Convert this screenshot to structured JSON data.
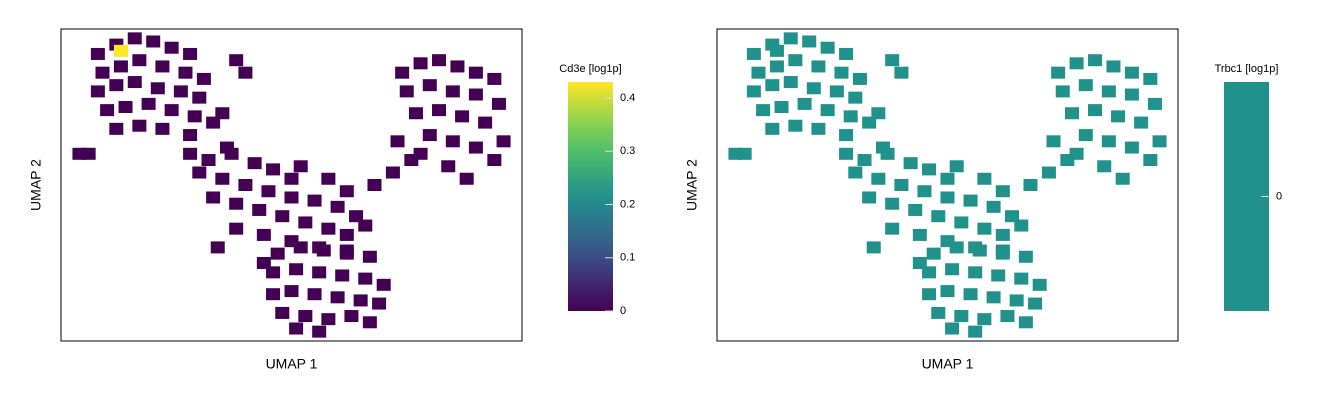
{
  "chart_data": [
    {
      "type": "scatter",
      "xlabel": "UMAP 1",
      "ylabel": "UMAP 2",
      "colorbar_label": "Cd3e [log1p]",
      "colormap": "viridis",
      "xlim": [
        0,
        100
      ],
      "ylim": [
        0,
        100
      ],
      "clim": [
        0,
        0.43
      ],
      "cticks": [
        0.0,
        0.1,
        0.2,
        0.3,
        0.4
      ],
      "x": [
        8,
        12,
        16,
        20,
        24,
        28,
        9,
        13,
        17,
        22,
        27,
        31,
        8,
        12,
        16,
        21,
        26,
        30,
        10,
        14,
        19,
        24,
        29,
        33,
        12,
        17,
        22,
        28,
        35,
        38,
        40,
        36,
        28,
        32,
        37,
        42,
        46,
        50,
        30,
        35,
        40,
        45,
        50,
        55,
        60,
        64,
        33,
        38,
        43,
        48,
        53,
        58,
        62,
        66,
        38,
        44,
        50,
        56,
        62,
        34,
        44,
        52,
        58,
        62,
        68,
        72,
        76,
        74,
        78,
        82,
        86,
        90,
        94,
        75,
        80,
        85,
        90,
        95,
        77,
        82,
        87,
        92,
        96,
        80,
        85,
        90,
        94,
        84,
        88,
        78,
        73,
        47,
        52,
        57,
        62,
        67,
        46,
        51,
        56,
        61,
        66,
        70,
        46,
        50,
        55,
        60,
        65,
        69,
        48,
        53,
        58,
        63,
        67,
        51,
        56,
        4,
        6,
        13
      ],
      "y": [
        92,
        95,
        97,
        96,
        94,
        92,
        86,
        88,
        90,
        88,
        86,
        84,
        80,
        82,
        83,
        81,
        80,
        78,
        74,
        75,
        76,
        74,
        72,
        70,
        68,
        69,
        68,
        66,
        73,
        90,
        86,
        62,
        60,
        58,
        60,
        57,
        55,
        52,
        54,
        52,
        50,
        48,
        46,
        45,
        43,
        40,
        46,
        44,
        42,
        40,
        38,
        36,
        34,
        37,
        36,
        34,
        32,
        30,
        29,
        30,
        25,
        56,
        52,
        48,
        50,
        54,
        58,
        86,
        89,
        90,
        88,
        86,
        84,
        80,
        82,
        80,
        79,
        76,
        73,
        74,
        72,
        70,
        64,
        66,
        64,
        62,
        58,
        56,
        52,
        60,
        64,
        28,
        30,
        29,
        28,
        27,
        22,
        23,
        22,
        21,
        20,
        18,
        15,
        16,
        15,
        14,
        13,
        12,
        9,
        8,
        7,
        8,
        6,
        4,
        3,
        60,
        60,
        93
      ],
      "values": [
        0,
        0,
        0,
        0,
        0,
        0,
        0,
        0,
        0,
        0,
        0,
        0,
        0,
        0,
        0,
        0,
        0,
        0,
        0,
        0,
        0,
        0,
        0,
        0,
        0,
        0,
        0,
        0,
        0,
        0,
        0,
        0,
        0,
        0,
        0,
        0,
        0,
        0,
        0,
        0,
        0,
        0,
        0,
        0,
        0,
        0,
        0,
        0,
        0,
        0,
        0,
        0,
        0,
        0,
        0,
        0,
        0,
        0,
        0,
        0,
        0,
        0,
        0,
        0,
        0,
        0,
        0,
        0,
        0,
        0,
        0,
        0,
        0,
        0,
        0,
        0,
        0,
        0,
        0,
        0,
        0,
        0,
        0,
        0,
        0,
        0,
        0,
        0,
        0,
        0,
        0,
        0,
        0,
        0,
        0,
        0,
        0,
        0,
        0,
        0,
        0,
        0,
        0,
        0,
        0,
        0,
        0,
        0,
        0,
        0,
        0,
        0,
        0,
        0,
        0,
        0,
        0,
        0.43
      ]
    },
    {
      "type": "scatter",
      "xlabel": "UMAP 1",
      "ylabel": "UMAP 2",
      "colorbar_label": "Trbc1 [log1p]",
      "colormap": "viridis",
      "xlim": [
        0,
        100
      ],
      "ylim": [
        0,
        100
      ],
      "clim": [
        -1,
        1
      ],
      "cticks": [
        0
      ],
      "x": [
        8,
        12,
        16,
        20,
        24,
        28,
        9,
        13,
        17,
        22,
        27,
        31,
        8,
        12,
        16,
        21,
        26,
        30,
        10,
        14,
        19,
        24,
        29,
        33,
        12,
        17,
        22,
        28,
        35,
        38,
        40,
        36,
        28,
        32,
        37,
        42,
        46,
        50,
        30,
        35,
        40,
        45,
        50,
        55,
        60,
        64,
        33,
        38,
        43,
        48,
        53,
        58,
        62,
        66,
        38,
        44,
        50,
        56,
        62,
        34,
        44,
        52,
        58,
        62,
        68,
        72,
        76,
        74,
        78,
        82,
        86,
        90,
        94,
        75,
        80,
        85,
        90,
        95,
        77,
        82,
        87,
        92,
        96,
        80,
        85,
        90,
        94,
        84,
        88,
        78,
        73,
        47,
        52,
        57,
        62,
        67,
        46,
        51,
        56,
        61,
        66,
        70,
        46,
        50,
        55,
        60,
        65,
        69,
        48,
        53,
        58,
        63,
        67,
        51,
        56,
        4,
        6,
        13
      ],
      "y": [
        92,
        95,
        97,
        96,
        94,
        92,
        86,
        88,
        90,
        88,
        86,
        84,
        80,
        82,
        83,
        81,
        80,
        78,
        74,
        75,
        76,
        74,
        72,
        70,
        68,
        69,
        68,
        66,
        73,
        90,
        86,
        62,
        60,
        58,
        60,
        57,
        55,
        52,
        54,
        52,
        50,
        48,
        46,
        45,
        43,
        40,
        46,
        44,
        42,
        40,
        38,
        36,
        34,
        37,
        36,
        34,
        32,
        30,
        29,
        30,
        25,
        56,
        52,
        48,
        50,
        54,
        58,
        86,
        89,
        90,
        88,
        86,
        84,
        80,
        82,
        80,
        79,
        76,
        73,
        74,
        72,
        70,
        64,
        66,
        64,
        62,
        58,
        56,
        52,
        60,
        64,
        28,
        30,
        29,
        28,
        27,
        22,
        23,
        22,
        21,
        20,
        18,
        15,
        16,
        15,
        14,
        13,
        12,
        9,
        8,
        7,
        8,
        6,
        4,
        3,
        60,
        60,
        93
      ],
      "values": [
        0,
        0,
        0,
        0,
        0,
        0,
        0,
        0,
        0,
        0,
        0,
        0,
        0,
        0,
        0,
        0,
        0,
        0,
        0,
        0,
        0,
        0,
        0,
        0,
        0,
        0,
        0,
        0,
        0,
        0,
        0,
        0,
        0,
        0,
        0,
        0,
        0,
        0,
        0,
        0,
        0,
        0,
        0,
        0,
        0,
        0,
        0,
        0,
        0,
        0,
        0,
        0,
        0,
        0,
        0,
        0,
        0,
        0,
        0,
        0,
        0,
        0,
        0,
        0,
        0,
        0,
        0,
        0,
        0,
        0,
        0,
        0,
        0,
        0,
        0,
        0,
        0,
        0,
        0,
        0,
        0,
        0,
        0,
        0,
        0,
        0,
        0,
        0,
        0,
        0,
        0,
        0,
        0,
        0,
        0,
        0,
        0,
        0,
        0,
        0,
        0,
        0,
        0,
        0,
        0,
        0,
        0,
        0,
        0,
        0,
        0,
        0,
        0,
        0,
        0,
        0,
        0,
        0
      ]
    }
  ]
}
